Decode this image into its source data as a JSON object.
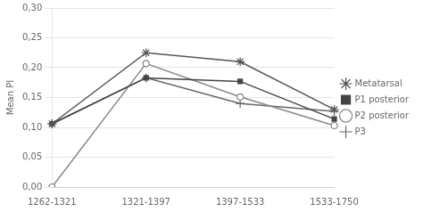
{
  "chart_data": {
    "type": "line",
    "categories": [
      "1262-1321",
      "1321-1397",
      "1397-1533",
      "1533-1750"
    ],
    "series": [
      {
        "name": "Metatarsal",
        "color": "#555555",
        "marker": "star",
        "values": [
          0.106,
          0.225,
          0.21,
          0.13
        ]
      },
      {
        "name": "P1 posterior",
        "color": "#444444",
        "marker": "square",
        "values": [
          0.106,
          0.183,
          0.177,
          0.114
        ]
      },
      {
        "name": "P2 posterior",
        "color": "#888888",
        "marker": "open_circle",
        "values": [
          0.0,
          0.207,
          0.151,
          0.103
        ]
      },
      {
        "name": "P3",
        "color": "#666666",
        "marker": "plus",
        "values": [
          0.106,
          0.183,
          0.14,
          0.127
        ]
      }
    ],
    "ylabel": "Mean PI",
    "ylim": [
      0.0,
      0.3
    ],
    "yticks": [
      {
        "value": 0.0,
        "label": "0,00"
      },
      {
        "value": 0.05,
        "label": "0,05"
      },
      {
        "value": 0.1,
        "label": "0,10"
      },
      {
        "value": 0.15,
        "label": "0,15"
      },
      {
        "value": 0.2,
        "label": "0,20"
      },
      {
        "value": 0.25,
        "label": "0,25"
      },
      {
        "value": 0.3,
        "label": "0,30"
      }
    ],
    "grid": true,
    "legend": "right"
  }
}
